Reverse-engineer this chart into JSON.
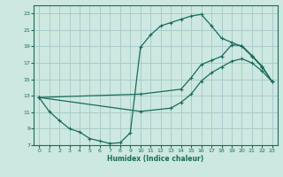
{
  "xlabel": "Humidex (Indice chaleur)",
  "bg_color": "#cce8e0",
  "grid_color": "#aacccc",
  "line_color": "#1a6b5a",
  "xlim": [
    -0.5,
    23.5
  ],
  "ylim": [
    7,
    24
  ],
  "xticks": [
    0,
    1,
    2,
    3,
    4,
    5,
    6,
    7,
    8,
    9,
    10,
    11,
    12,
    13,
    14,
    15,
    16,
    17,
    18,
    19,
    20,
    21,
    22,
    23
  ],
  "yticks": [
    7,
    9,
    11,
    13,
    15,
    17,
    19,
    21,
    23
  ],
  "curve1_x": [
    0,
    1,
    2,
    3,
    4,
    5,
    6,
    7,
    8,
    9,
    10,
    11,
    12,
    13,
    14,
    15,
    16,
    17,
    18,
    19,
    20,
    21,
    22,
    23
  ],
  "curve1_y": [
    12.8,
    11.1,
    10.0,
    9.0,
    8.6,
    7.8,
    7.5,
    7.2,
    7.3,
    8.5,
    18.9,
    20.4,
    21.5,
    21.9,
    22.3,
    22.7,
    22.9,
    21.5,
    20.0,
    19.5,
    19.0,
    17.8,
    16.5,
    14.7
  ],
  "curve2_x": [
    0,
    10,
    14,
    15,
    16,
    17,
    18,
    19,
    20,
    21,
    22,
    23
  ],
  "curve2_y": [
    12.8,
    13.2,
    13.8,
    15.2,
    16.8,
    17.3,
    17.8,
    19.2,
    19.1,
    17.9,
    16.6,
    14.7
  ],
  "curve3_x": [
    0,
    10,
    13,
    14,
    15,
    16,
    17,
    18,
    19,
    20,
    21,
    22,
    23
  ],
  "curve3_y": [
    12.8,
    11.1,
    11.5,
    12.2,
    13.2,
    14.8,
    15.8,
    16.5,
    17.2,
    17.5,
    17.0,
    16.0,
    14.7
  ]
}
